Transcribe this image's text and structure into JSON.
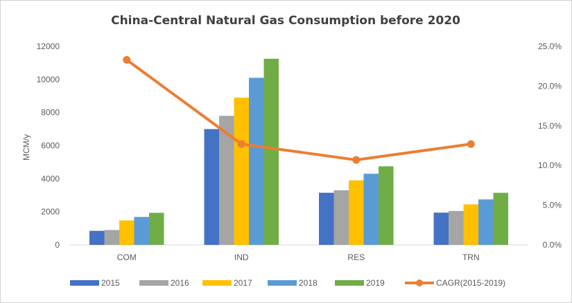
{
  "chart_data": {
    "type": "bar",
    "title": "China-Central Natural Gas Consumption before 2020",
    "ylabel": "MCM/y",
    "y2label": "",
    "categories": [
      "COM",
      "IND",
      "RES",
      "TRN"
    ],
    "ylim": [
      0,
      12000
    ],
    "yticks": [
      "0",
      "2000",
      "4000",
      "6000",
      "8000",
      "10000",
      "12000"
    ],
    "y2lim": [
      0,
      0.25
    ],
    "y2ticks": [
      "0.0%",
      "5.0%",
      "10.0%",
      "15.0%",
      "20.0%",
      "25.0%"
    ],
    "grid": false,
    "legend_position": "bottom",
    "series": [
      {
        "name": "2015",
        "type": "bar",
        "color": "#4472C4",
        "values": [
          850,
          7000,
          3150,
          1950
        ]
      },
      {
        "name": "2016",
        "type": "bar",
        "color": "#A5A5A5",
        "values": [
          900,
          7800,
          3300,
          2050
        ]
      },
      {
        "name": "2017",
        "type": "bar",
        "color": "#FFC000",
        "values": [
          1480,
          8900,
          3900,
          2450
        ]
      },
      {
        "name": "2018",
        "type": "bar",
        "color": "#5B9BD5",
        "values": [
          1690,
          10100,
          4300,
          2750
        ]
      },
      {
        "name": "2019",
        "type": "bar",
        "color": "#70AD47",
        "values": [
          1940,
          11250,
          4750,
          3150
        ]
      },
      {
        "name": "CAGR(2015-2019)",
        "type": "line",
        "axis": "secondary",
        "color": "#ED7D31",
        "values": [
          0.233,
          0.127,
          0.107,
          0.127
        ]
      }
    ]
  }
}
